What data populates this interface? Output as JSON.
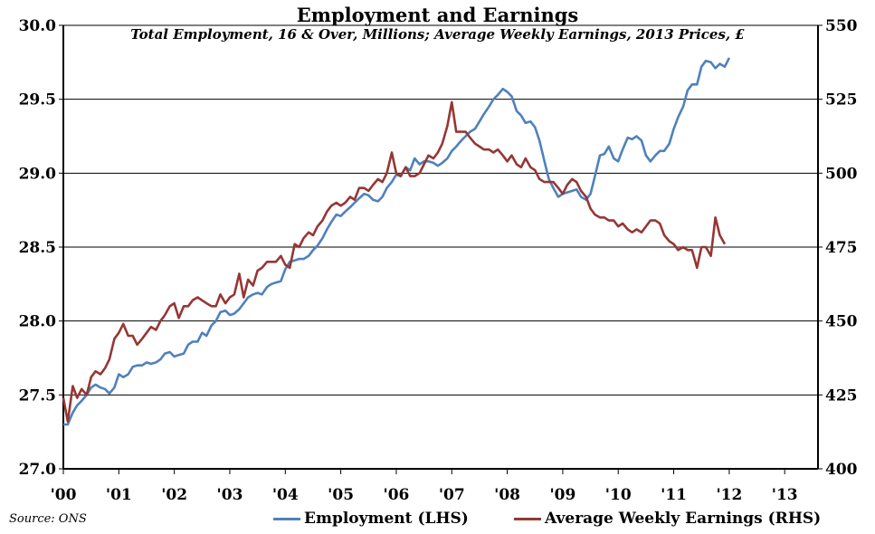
{
  "chart_data": {
    "type": "line",
    "title": "Employment and Earnings",
    "subtitle": "Total Employment, 16 & Over, Millions; Average Weekly Earnings, 2013 Prices, £",
    "source": "Source: ONS",
    "x_tick_labels": [
      "'00",
      "'01",
      "'02",
      "'03",
      "'04",
      "'05",
      "'06",
      "'07",
      "'08",
      "'09",
      "'10",
      "'11",
      "'12",
      "'13"
    ],
    "x_range": [
      2000.0,
      2013.6
    ],
    "y_left": {
      "range": [
        27.0,
        30.0
      ],
      "ticks": [
        "27.0",
        "27.5",
        "28.0",
        "28.5",
        "29.0",
        "29.5",
        "30.0"
      ]
    },
    "y_right": {
      "range": [
        400,
        550
      ],
      "ticks": [
        "400",
        "425",
        "450",
        "475",
        "500",
        "525",
        "550"
      ]
    },
    "grid": true,
    "legend_position": "bottom-right",
    "series": [
      {
        "name": "Employment (LHS)",
        "axis": "left",
        "color": "#4f81bd",
        "points": [
          [
            2000.0,
            27.3
          ],
          [
            2000.08,
            27.3
          ],
          [
            2000.17,
            27.38
          ],
          [
            2000.25,
            27.43
          ],
          [
            2000.33,
            27.46
          ],
          [
            2000.42,
            27.5
          ],
          [
            2000.5,
            27.55
          ],
          [
            2000.58,
            27.57
          ],
          [
            2000.67,
            27.55
          ],
          [
            2000.75,
            27.54
          ],
          [
            2000.83,
            27.51
          ],
          [
            2000.92,
            27.55
          ],
          [
            2001.0,
            27.64
          ],
          [
            2001.08,
            27.62
          ],
          [
            2001.17,
            27.64
          ],
          [
            2001.25,
            27.69
          ],
          [
            2001.33,
            27.7
          ],
          [
            2001.42,
            27.7
          ],
          [
            2001.5,
            27.72
          ],
          [
            2001.58,
            27.71
          ],
          [
            2001.67,
            27.72
          ],
          [
            2001.75,
            27.74
          ],
          [
            2001.83,
            27.78
          ],
          [
            2001.92,
            27.79
          ],
          [
            2002.0,
            27.76
          ],
          [
            2002.08,
            27.77
          ],
          [
            2002.17,
            27.78
          ],
          [
            2002.25,
            27.84
          ],
          [
            2002.33,
            27.86
          ],
          [
            2002.42,
            27.86
          ],
          [
            2002.5,
            27.92
          ],
          [
            2002.58,
            27.9
          ],
          [
            2002.67,
            27.97
          ],
          [
            2002.75,
            28.0
          ],
          [
            2002.83,
            28.06
          ],
          [
            2002.92,
            28.07
          ],
          [
            2003.0,
            28.04
          ],
          [
            2003.08,
            28.05
          ],
          [
            2003.17,
            28.08
          ],
          [
            2003.25,
            28.12
          ],
          [
            2003.33,
            28.16
          ],
          [
            2003.42,
            28.18
          ],
          [
            2003.5,
            28.19
          ],
          [
            2003.58,
            28.18
          ],
          [
            2003.67,
            28.23
          ],
          [
            2003.75,
            28.25
          ],
          [
            2003.83,
            28.26
          ],
          [
            2003.92,
            28.27
          ],
          [
            2004.0,
            28.35
          ],
          [
            2004.08,
            28.4
          ],
          [
            2004.17,
            28.41
          ],
          [
            2004.25,
            28.42
          ],
          [
            2004.33,
            28.42
          ],
          [
            2004.42,
            28.44
          ],
          [
            2004.5,
            28.48
          ],
          [
            2004.58,
            28.51
          ],
          [
            2004.67,
            28.56
          ],
          [
            2004.75,
            28.62
          ],
          [
            2004.83,
            28.67
          ],
          [
            2004.92,
            28.72
          ],
          [
            2005.0,
            28.71
          ],
          [
            2005.08,
            28.74
          ],
          [
            2005.17,
            28.77
          ],
          [
            2005.25,
            28.8
          ],
          [
            2005.33,
            28.83
          ],
          [
            2005.42,
            28.86
          ],
          [
            2005.5,
            28.85
          ],
          [
            2005.58,
            28.82
          ],
          [
            2005.67,
            28.81
          ],
          [
            2005.75,
            28.84
          ],
          [
            2005.83,
            28.9
          ],
          [
            2005.92,
            28.94
          ],
          [
            2006.0,
            28.99
          ],
          [
            2006.08,
            28.98
          ],
          [
            2006.17,
            29.04
          ],
          [
            2006.25,
            29.02
          ],
          [
            2006.33,
            29.1
          ],
          [
            2006.42,
            29.06
          ],
          [
            2006.5,
            29.08
          ],
          [
            2006.58,
            29.08
          ],
          [
            2006.67,
            29.07
          ],
          [
            2006.75,
            29.05
          ],
          [
            2006.83,
            29.07
          ],
          [
            2006.92,
            29.1
          ],
          [
            2007.0,
            29.15
          ],
          [
            2007.08,
            29.18
          ],
          [
            2007.17,
            29.22
          ],
          [
            2007.25,
            29.25
          ],
          [
            2007.33,
            29.28
          ],
          [
            2007.42,
            29.3
          ],
          [
            2007.5,
            29.35
          ],
          [
            2007.58,
            29.4
          ],
          [
            2007.67,
            29.45
          ],
          [
            2007.75,
            29.5
          ],
          [
            2007.83,
            29.53
          ],
          [
            2007.92,
            29.57
          ],
          [
            2008.0,
            29.55
          ],
          [
            2008.08,
            29.52
          ],
          [
            2008.17,
            29.42
          ],
          [
            2008.25,
            29.39
          ],
          [
            2008.33,
            29.34
          ],
          [
            2008.42,
            29.35
          ],
          [
            2008.5,
            29.31
          ],
          [
            2008.58,
            29.22
          ],
          [
            2008.67,
            29.08
          ],
          [
            2008.75,
            28.96
          ],
          [
            2008.83,
            28.9
          ],
          [
            2008.92,
            28.84
          ],
          [
            2009.0,
            28.86
          ],
          [
            2009.08,
            28.87
          ],
          [
            2009.17,
            28.88
          ],
          [
            2009.25,
            28.89
          ],
          [
            2009.33,
            28.84
          ],
          [
            2009.42,
            28.82
          ],
          [
            2009.5,
            28.86
          ],
          [
            2009.58,
            28.98
          ],
          [
            2009.67,
            29.12
          ],
          [
            2009.75,
            29.13
          ],
          [
            2009.83,
            29.18
          ],
          [
            2009.92,
            29.1
          ],
          [
            2010.0,
            29.08
          ],
          [
            2010.08,
            29.16
          ],
          [
            2010.17,
            29.24
          ],
          [
            2010.25,
            29.23
          ],
          [
            2010.33,
            29.25
          ],
          [
            2010.42,
            29.22
          ],
          [
            2010.5,
            29.12
          ],
          [
            2010.58,
            29.08
          ],
          [
            2010.67,
            29.12
          ],
          [
            2010.75,
            29.15
          ],
          [
            2010.83,
            29.15
          ],
          [
            2010.92,
            29.2
          ],
          [
            2011.0,
            29.3
          ],
          [
            2011.08,
            29.38
          ],
          [
            2011.17,
            29.45
          ],
          [
            2011.25,
            29.56
          ],
          [
            2011.33,
            29.6
          ],
          [
            2011.42,
            29.6
          ],
          [
            2011.5,
            29.72
          ],
          [
            2011.58,
            29.76
          ],
          [
            2011.67,
            29.75
          ],
          [
            2011.75,
            29.71
          ],
          [
            2011.83,
            29.74
          ],
          [
            2011.92,
            29.72
          ],
          [
            2012.0,
            29.78
          ]
        ]
      },
      {
        "name": "Average Weekly Earnings (RHS)",
        "axis": "right",
        "color": "#953735",
        "points": [
          [
            2000.0,
            424
          ],
          [
            2000.08,
            416
          ],
          [
            2000.17,
            428
          ],
          [
            2000.25,
            424
          ],
          [
            2000.33,
            427
          ],
          [
            2000.42,
            425
          ],
          [
            2000.5,
            431
          ],
          [
            2000.58,
            433
          ],
          [
            2000.67,
            432
          ],
          [
            2000.75,
            434
          ],
          [
            2000.83,
            437
          ],
          [
            2000.92,
            444
          ],
          [
            2001.0,
            446
          ],
          [
            2001.08,
            449
          ],
          [
            2001.17,
            445
          ],
          [
            2001.25,
            445
          ],
          [
            2001.33,
            442
          ],
          [
            2001.42,
            444
          ],
          [
            2001.5,
            446
          ],
          [
            2001.58,
            448
          ],
          [
            2001.67,
            447
          ],
          [
            2001.75,
            450
          ],
          [
            2001.83,
            452
          ],
          [
            2001.92,
            455
          ],
          [
            2002.0,
            456
          ],
          [
            2002.08,
            451
          ],
          [
            2002.17,
            455
          ],
          [
            2002.25,
            455
          ],
          [
            2002.33,
            457
          ],
          [
            2002.42,
            458
          ],
          [
            2002.5,
            457
          ],
          [
            2002.58,
            456
          ],
          [
            2002.67,
            455
          ],
          [
            2002.75,
            455
          ],
          [
            2002.83,
            459
          ],
          [
            2002.92,
            456
          ],
          [
            2003.0,
            458
          ],
          [
            2003.08,
            459
          ],
          [
            2003.17,
            466
          ],
          [
            2003.25,
            458
          ],
          [
            2003.33,
            464
          ],
          [
            2003.42,
            462
          ],
          [
            2003.5,
            467
          ],
          [
            2003.58,
            468
          ],
          [
            2003.67,
            470
          ],
          [
            2003.75,
            470
          ],
          [
            2003.83,
            470
          ],
          [
            2003.92,
            472
          ],
          [
            2004.0,
            469
          ],
          [
            2004.08,
            468
          ],
          [
            2004.17,
            476
          ],
          [
            2004.25,
            475
          ],
          [
            2004.33,
            478
          ],
          [
            2004.42,
            480
          ],
          [
            2004.5,
            479
          ],
          [
            2004.58,
            482
          ],
          [
            2004.67,
            484
          ],
          [
            2004.75,
            487
          ],
          [
            2004.83,
            489
          ],
          [
            2004.92,
            490
          ],
          [
            2005.0,
            489
          ],
          [
            2005.08,
            490
          ],
          [
            2005.17,
            492
          ],
          [
            2005.25,
            491
          ],
          [
            2005.33,
            495
          ],
          [
            2005.42,
            495
          ],
          [
            2005.5,
            494
          ],
          [
            2005.58,
            496
          ],
          [
            2005.67,
            498
          ],
          [
            2005.75,
            497
          ],
          [
            2005.83,
            500
          ],
          [
            2005.92,
            507
          ],
          [
            2006.0,
            500
          ],
          [
            2006.08,
            499
          ],
          [
            2006.17,
            502
          ],
          [
            2006.25,
            499
          ],
          [
            2006.33,
            499
          ],
          [
            2006.42,
            500
          ],
          [
            2006.5,
            503
          ],
          [
            2006.58,
            506
          ],
          [
            2006.67,
            505
          ],
          [
            2006.75,
            507
          ],
          [
            2006.83,
            510
          ],
          [
            2006.92,
            516
          ],
          [
            2007.0,
            524
          ],
          [
            2007.08,
            514
          ],
          [
            2007.17,
            514
          ],
          [
            2007.25,
            514
          ],
          [
            2007.33,
            512
          ],
          [
            2007.42,
            510
          ],
          [
            2007.5,
            509
          ],
          [
            2007.58,
            508
          ],
          [
            2007.67,
            508
          ],
          [
            2007.75,
            507
          ],
          [
            2007.83,
            508
          ],
          [
            2007.92,
            506
          ],
          [
            2008.0,
            504
          ],
          [
            2008.08,
            506
          ],
          [
            2008.17,
            503
          ],
          [
            2008.25,
            502
          ],
          [
            2008.33,
            505
          ],
          [
            2008.42,
            502
          ],
          [
            2008.5,
            501
          ],
          [
            2008.58,
            498
          ],
          [
            2008.67,
            497
          ],
          [
            2008.75,
            497
          ],
          [
            2008.83,
            497
          ],
          [
            2008.92,
            495
          ],
          [
            2009.0,
            493
          ],
          [
            2009.08,
            496
          ],
          [
            2009.17,
            498
          ],
          [
            2009.25,
            497
          ],
          [
            2009.33,
            494
          ],
          [
            2009.42,
            492
          ],
          [
            2009.5,
            488
          ],
          [
            2009.58,
            486
          ],
          [
            2009.67,
            485
          ],
          [
            2009.75,
            485
          ],
          [
            2009.83,
            484
          ],
          [
            2009.92,
            484
          ],
          [
            2010.0,
            482
          ],
          [
            2010.08,
            483
          ],
          [
            2010.17,
            481
          ],
          [
            2010.25,
            480
          ],
          [
            2010.33,
            481
          ],
          [
            2010.42,
            480
          ],
          [
            2010.5,
            482
          ],
          [
            2010.58,
            484
          ],
          [
            2010.67,
            484
          ],
          [
            2010.75,
            483
          ],
          [
            2010.83,
            479
          ],
          [
            2010.92,
            477
          ],
          [
            2011.0,
            476
          ],
          [
            2011.08,
            474
          ],
          [
            2011.17,
            475
          ],
          [
            2011.25,
            474
          ],
          [
            2011.33,
            474
          ],
          [
            2011.42,
            468
          ],
          [
            2011.5,
            475
          ],
          [
            2011.58,
            475
          ],
          [
            2011.67,
            472
          ],
          [
            2011.75,
            485
          ],
          [
            2011.83,
            479
          ],
          [
            2011.92,
            476
          ]
        ]
      }
    ]
  }
}
